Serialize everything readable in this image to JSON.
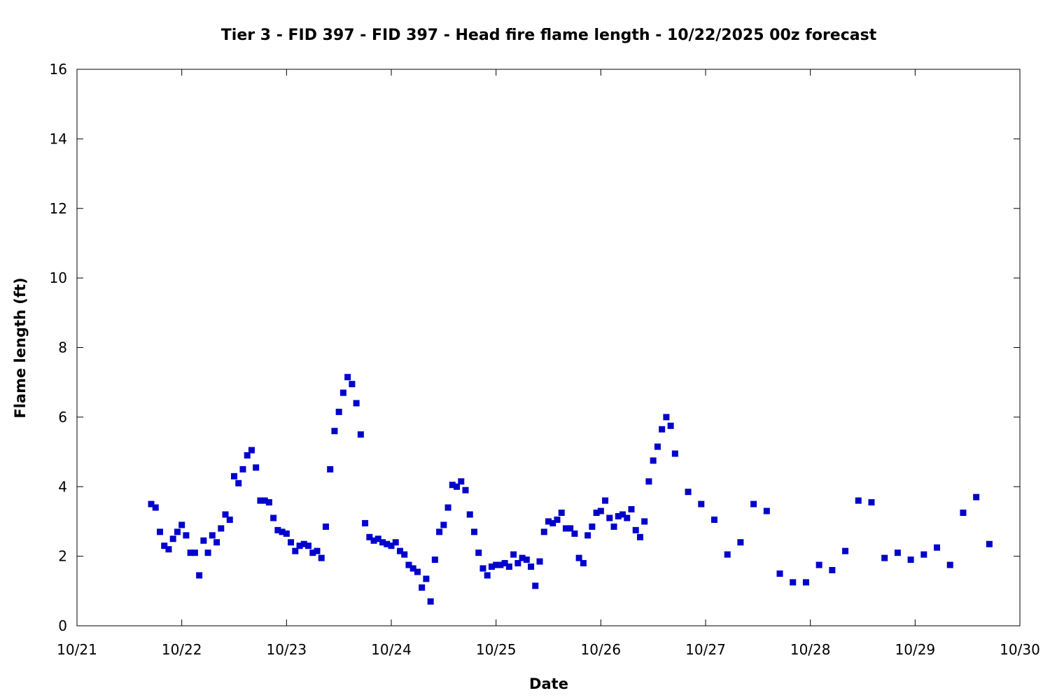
{
  "chart_data": {
    "type": "scatter",
    "title": "Tier 3 - FID 397 - FID 397 - Head fire flame length - 10/22/2025 00z forecast",
    "xlabel": "Date",
    "ylabel": "Flame length (ft)",
    "x_ticks": [
      "10/21",
      "10/22",
      "10/23",
      "10/24",
      "10/25",
      "10/26",
      "10/27",
      "10/28",
      "10/29",
      "10/30"
    ],
    "y_ticks": [
      "0",
      "2",
      "4",
      "6",
      "8",
      "10",
      "12",
      "14",
      "16"
    ],
    "xlim": [
      "10/21 00:00",
      "10/30 00:00"
    ],
    "ylim": [
      0,
      16
    ],
    "grid": false,
    "marker_color": "#0000cc",
    "series": [
      {
        "points": [
          [
            "10/21 17:00",
            3.5
          ],
          [
            "10/21 18:00",
            3.4
          ],
          [
            "10/21 19:00",
            2.7
          ],
          [
            "10/21 20:00",
            2.3
          ],
          [
            "10/21 21:00",
            2.2
          ],
          [
            "10/21 22:00",
            2.5
          ],
          [
            "10/21 23:00",
            2.7
          ],
          [
            "10/22 00:00",
            2.9
          ],
          [
            "10/22 01:00",
            2.6
          ],
          [
            "10/22 02:00",
            2.1
          ],
          [
            "10/22 03:00",
            2.1
          ],
          [
            "10/22 04:00",
            1.45
          ],
          [
            "10/22 05:00",
            2.45
          ],
          [
            "10/22 06:00",
            2.1
          ],
          [
            "10/22 07:00",
            2.6
          ],
          [
            "10/22 08:00",
            2.4
          ],
          [
            "10/22 09:00",
            2.8
          ],
          [
            "10/22 10:00",
            3.2
          ],
          [
            "10/22 11:00",
            3.05
          ],
          [
            "10/22 12:00",
            4.3
          ],
          [
            "10/22 13:00",
            4.1
          ],
          [
            "10/22 14:00",
            4.5
          ],
          [
            "10/22 15:00",
            4.9
          ],
          [
            "10/22 16:00",
            5.05
          ],
          [
            "10/22 17:00",
            4.55
          ],
          [
            "10/22 18:00",
            3.6
          ],
          [
            "10/22 19:00",
            3.6
          ],
          [
            "10/22 20:00",
            3.55
          ],
          [
            "10/22 21:00",
            3.1
          ],
          [
            "10/22 22:00",
            2.75
          ],
          [
            "10/22 23:00",
            2.7
          ],
          [
            "10/23 00:00",
            2.65
          ],
          [
            "10/23 01:00",
            2.4
          ],
          [
            "10/23 02:00",
            2.15
          ],
          [
            "10/23 03:00",
            2.3
          ],
          [
            "10/23 04:00",
            2.35
          ],
          [
            "10/23 05:00",
            2.3
          ],
          [
            "10/23 06:00",
            2.1
          ],
          [
            "10/23 07:00",
            2.15
          ],
          [
            "10/23 08:00",
            1.95
          ],
          [
            "10/23 09:00",
            2.85
          ],
          [
            "10/23 10:00",
            4.5
          ],
          [
            "10/23 11:00",
            5.6
          ],
          [
            "10/23 12:00",
            6.15
          ],
          [
            "10/23 13:00",
            6.7
          ],
          [
            "10/23 14:00",
            7.15
          ],
          [
            "10/23 15:00",
            6.95
          ],
          [
            "10/23 16:00",
            6.4
          ],
          [
            "10/23 17:00",
            5.5
          ],
          [
            "10/23 18:00",
            2.95
          ],
          [
            "10/23 19:00",
            2.55
          ],
          [
            "10/23 20:00",
            2.45
          ],
          [
            "10/23 21:00",
            2.5
          ],
          [
            "10/23 22:00",
            2.4
          ],
          [
            "10/23 23:00",
            2.35
          ],
          [
            "10/24 00:00",
            2.3
          ],
          [
            "10/24 01:00",
            2.4
          ],
          [
            "10/24 02:00",
            2.15
          ],
          [
            "10/24 03:00",
            2.05
          ],
          [
            "10/24 04:00",
            1.75
          ],
          [
            "10/24 05:00",
            1.65
          ],
          [
            "10/24 06:00",
            1.55
          ],
          [
            "10/24 07:00",
            1.1
          ],
          [
            "10/24 08:00",
            1.35
          ],
          [
            "10/24 09:00",
            0.7
          ],
          [
            "10/24 10:00",
            1.9
          ],
          [
            "10/24 11:00",
            2.7
          ],
          [
            "10/24 12:00",
            2.9
          ],
          [
            "10/24 13:00",
            3.4
          ],
          [
            "10/24 14:00",
            4.05
          ],
          [
            "10/24 15:00",
            4.0
          ],
          [
            "10/24 16:00",
            4.15
          ],
          [
            "10/24 17:00",
            3.9
          ],
          [
            "10/24 18:00",
            3.2
          ],
          [
            "10/24 19:00",
            2.7
          ],
          [
            "10/24 20:00",
            2.1
          ],
          [
            "10/24 21:00",
            1.65
          ],
          [
            "10/24 22:00",
            1.45
          ],
          [
            "10/24 23:00",
            1.7
          ],
          [
            "10/25 00:00",
            1.75
          ],
          [
            "10/25 01:00",
            1.75
          ],
          [
            "10/25 02:00",
            1.8
          ],
          [
            "10/25 03:00",
            1.7
          ],
          [
            "10/25 04:00",
            2.05
          ],
          [
            "10/25 05:00",
            1.8
          ],
          [
            "10/25 06:00",
            1.95
          ],
          [
            "10/25 07:00",
            1.9
          ],
          [
            "10/25 08:00",
            1.7
          ],
          [
            "10/25 09:00",
            1.15
          ],
          [
            "10/25 10:00",
            1.85
          ],
          [
            "10/25 11:00",
            2.7
          ],
          [
            "10/25 12:00",
            3.0
          ],
          [
            "10/25 13:00",
            2.95
          ],
          [
            "10/25 14:00",
            3.05
          ],
          [
            "10/25 15:00",
            3.25
          ],
          [
            "10/25 16:00",
            2.8
          ],
          [
            "10/25 17:00",
            2.8
          ],
          [
            "10/25 18:00",
            2.65
          ],
          [
            "10/25 19:00",
            1.95
          ],
          [
            "10/25 20:00",
            1.8
          ],
          [
            "10/25 21:00",
            2.6
          ],
          [
            "10/25 22:00",
            2.85
          ],
          [
            "10/25 23:00",
            3.25
          ],
          [
            "10/26 00:00",
            3.3
          ],
          [
            "10/26 01:00",
            3.6
          ],
          [
            "10/26 02:00",
            3.1
          ],
          [
            "10/26 03:00",
            2.85
          ],
          [
            "10/26 04:00",
            3.15
          ],
          [
            "10/26 05:00",
            3.2
          ],
          [
            "10/26 06:00",
            3.1
          ],
          [
            "10/26 07:00",
            3.35
          ],
          [
            "10/26 08:00",
            2.75
          ],
          [
            "10/26 09:00",
            2.55
          ],
          [
            "10/26 10:00",
            3.0
          ],
          [
            "10/26 11:00",
            4.15
          ],
          [
            "10/26 12:00",
            4.75
          ],
          [
            "10/26 13:00",
            5.15
          ],
          [
            "10/26 14:00",
            5.65
          ],
          [
            "10/26 15:00",
            6.0
          ],
          [
            "10/26 16:00",
            5.75
          ],
          [
            "10/26 17:00",
            4.95
          ],
          [
            "10/26 20:00",
            3.85
          ],
          [
            "10/26 23:00",
            3.5
          ],
          [
            "10/27 02:00",
            3.05
          ],
          [
            "10/27 05:00",
            2.05
          ],
          [
            "10/27 08:00",
            2.4
          ],
          [
            "10/27 11:00",
            3.5
          ],
          [
            "10/27 14:00",
            3.3
          ],
          [
            "10/27 17:00",
            1.5
          ],
          [
            "10/27 20:00",
            1.25
          ],
          [
            "10/27 23:00",
            1.25
          ],
          [
            "10/28 02:00",
            1.75
          ],
          [
            "10/28 05:00",
            1.6
          ],
          [
            "10/28 08:00",
            2.15
          ],
          [
            "10/28 11:00",
            3.6
          ],
          [
            "10/28 14:00",
            3.55
          ],
          [
            "10/28 17:00",
            1.95
          ],
          [
            "10/28 20:00",
            2.1
          ],
          [
            "10/28 23:00",
            1.9
          ],
          [
            "10/29 02:00",
            2.05
          ],
          [
            "10/29 05:00",
            2.25
          ],
          [
            "10/29 08:00",
            1.75
          ],
          [
            "10/29 11:00",
            3.25
          ],
          [
            "10/29 14:00",
            3.7
          ],
          [
            "10/29 17:00",
            2.35
          ]
        ]
      }
    ]
  }
}
